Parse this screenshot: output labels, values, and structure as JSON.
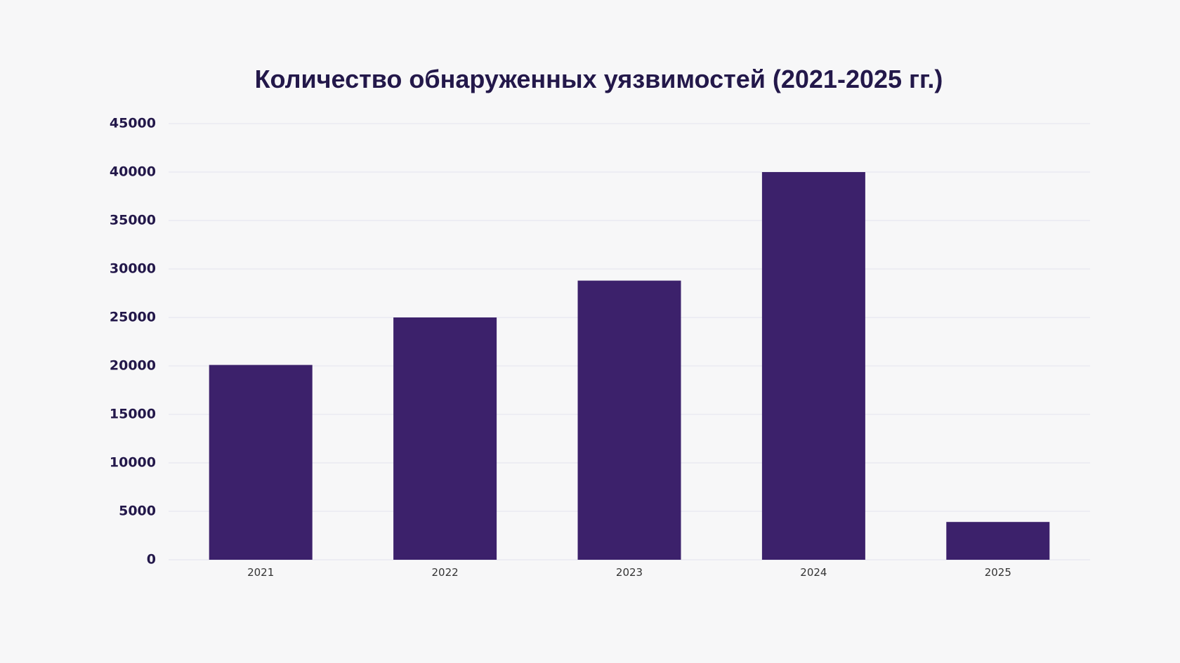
{
  "colors": {
    "background": "#f7f7f8",
    "bar": "#3c216b",
    "title": "#23184a",
    "grid": "#e3e3ee"
  },
  "chart_data": {
    "type": "bar",
    "title": "Количество обнаруженных уязвимостей (2021-2025 гг.)",
    "xlabel": "",
    "ylabel": "",
    "categories": [
      "2021",
      "2022",
      "2023",
      "2024",
      "2025"
    ],
    "values": [
      20100,
      25000,
      28800,
      40000,
      3900
    ],
    "ylim": [
      0,
      45000
    ],
    "yticks": [
      0,
      5000,
      10000,
      15000,
      20000,
      25000,
      30000,
      35000,
      40000,
      45000
    ],
    "grid": true,
    "legend": "none"
  }
}
